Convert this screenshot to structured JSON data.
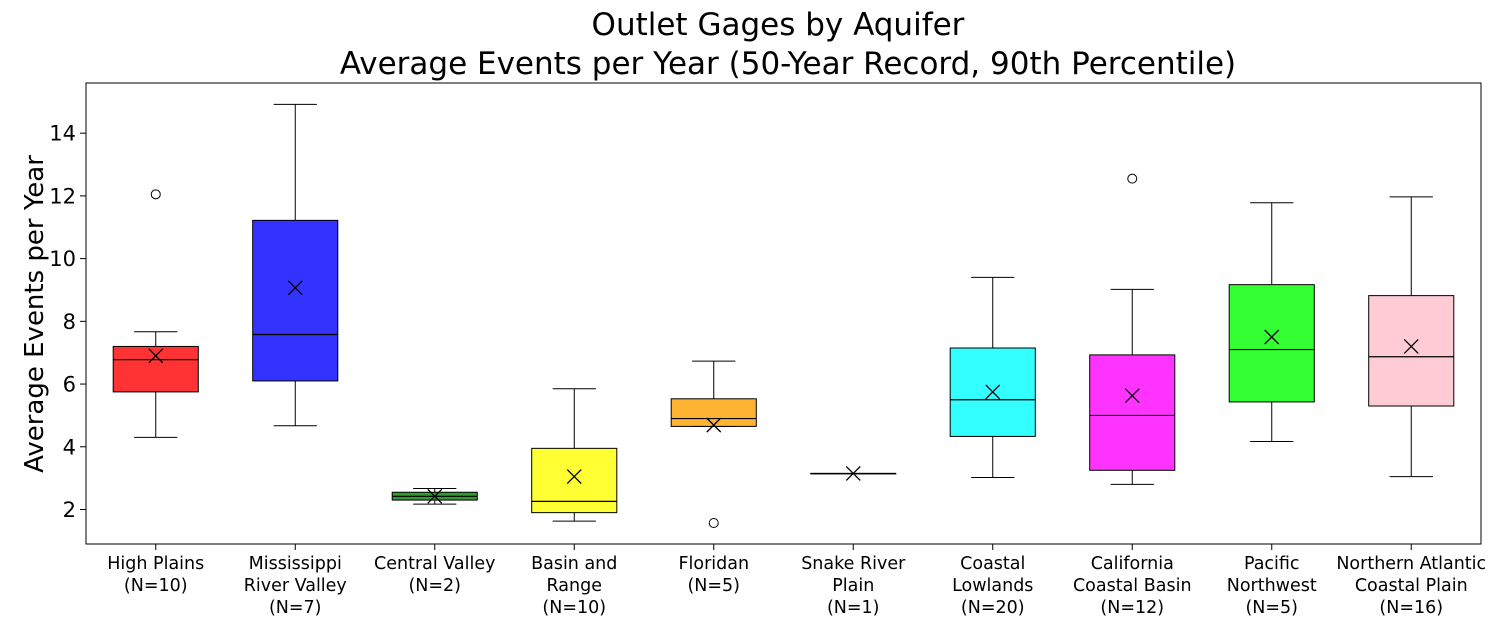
{
  "chart_data": {
    "type": "box",
    "title": "Outlet Gages by Aquifer",
    "subtitle": "Average Events per Year (50-Year Record, 90th Percentile)",
    "xlabel": "",
    "ylabel": "Average Events per Year",
    "ylim": [
      0.9,
      15.6
    ],
    "yticks": [
      "2",
      "4",
      "6",
      "8",
      "10",
      "12",
      "14"
    ],
    "grid": false,
    "categories": [
      {
        "label_lines": [
          "High Plains",
          "(N=10)"
        ],
        "color": "#ff3333",
        "whisker_low": 4.3,
        "q1": 5.75,
        "median": 6.78,
        "q3": 7.2,
        "whisker_high": 7.67,
        "mean": 6.9,
        "outliers": [
          12.05
        ]
      },
      {
        "label_lines": [
          "Mississippi",
          "River Valley",
          "(N=7)"
        ],
        "color": "#3333ff",
        "whisker_low": 4.67,
        "q1": 6.1,
        "median": 7.58,
        "q3": 11.22,
        "whisker_high": 14.92,
        "mean": 9.07,
        "outliers": []
      },
      {
        "label_lines": [
          "Central Valley",
          "(N=2)"
        ],
        "color": "#339933",
        "whisker_low": 2.17,
        "q1": 2.3,
        "median": 2.42,
        "q3": 2.55,
        "whisker_high": 2.67,
        "mean": 2.42,
        "outliers": []
      },
      {
        "label_lines": [
          "Basin and",
          "Range",
          "(N=10)"
        ],
        "color": "#ffff33",
        "whisker_low": 1.63,
        "q1": 1.9,
        "median": 2.26,
        "q3": 3.95,
        "whisker_high": 5.85,
        "mean": 3.05,
        "outliers": []
      },
      {
        "label_lines": [
          "Floridan",
          "(N=5)"
        ],
        "color": "#ffb333",
        "whisker_low": 4.65,
        "q1": 4.65,
        "median": 4.9,
        "q3": 5.53,
        "whisker_high": 6.73,
        "mean": 4.69,
        "outliers": [
          1.57
        ]
      },
      {
        "label_lines": [
          "Snake River",
          "Plain",
          "(N=1)"
        ],
        "color": "#7a7a7a",
        "whisker_low": 3.15,
        "q1": 3.15,
        "median": 3.15,
        "q3": 3.15,
        "whisker_high": 3.15,
        "mean": 3.15,
        "outliers": []
      },
      {
        "label_lines": [
          "Coastal",
          "Lowlands",
          "(N=20)"
        ],
        "color": "#33ffff",
        "whisker_low": 3.02,
        "q1": 4.33,
        "median": 5.5,
        "q3": 7.15,
        "whisker_high": 9.4,
        "mean": 5.75,
        "outliers": []
      },
      {
        "label_lines": [
          "California",
          "Coastal Basin",
          "(N=12)"
        ],
        "color": "#ff33ff",
        "whisker_low": 2.8,
        "q1": 3.25,
        "median": 5.0,
        "q3": 6.93,
        "whisker_high": 9.02,
        "mean": 5.63,
        "outliers": [
          12.55
        ]
      },
      {
        "label_lines": [
          "Pacific",
          "Northwest",
          "(N=5)"
        ],
        "color": "#33ff33",
        "whisker_low": 4.17,
        "q1": 5.43,
        "median": 7.1,
        "q3": 9.17,
        "whisker_high": 11.78,
        "mean": 7.5,
        "outliers": []
      },
      {
        "label_lines": [
          "Northern Atlantic",
          "Coastal Plain",
          "(N=16)"
        ],
        "color": "#ffccd5",
        "whisker_low": 3.05,
        "q1": 5.3,
        "median": 6.87,
        "q3": 8.82,
        "whisker_high": 11.97,
        "mean": 7.2,
        "outliers": []
      }
    ]
  }
}
